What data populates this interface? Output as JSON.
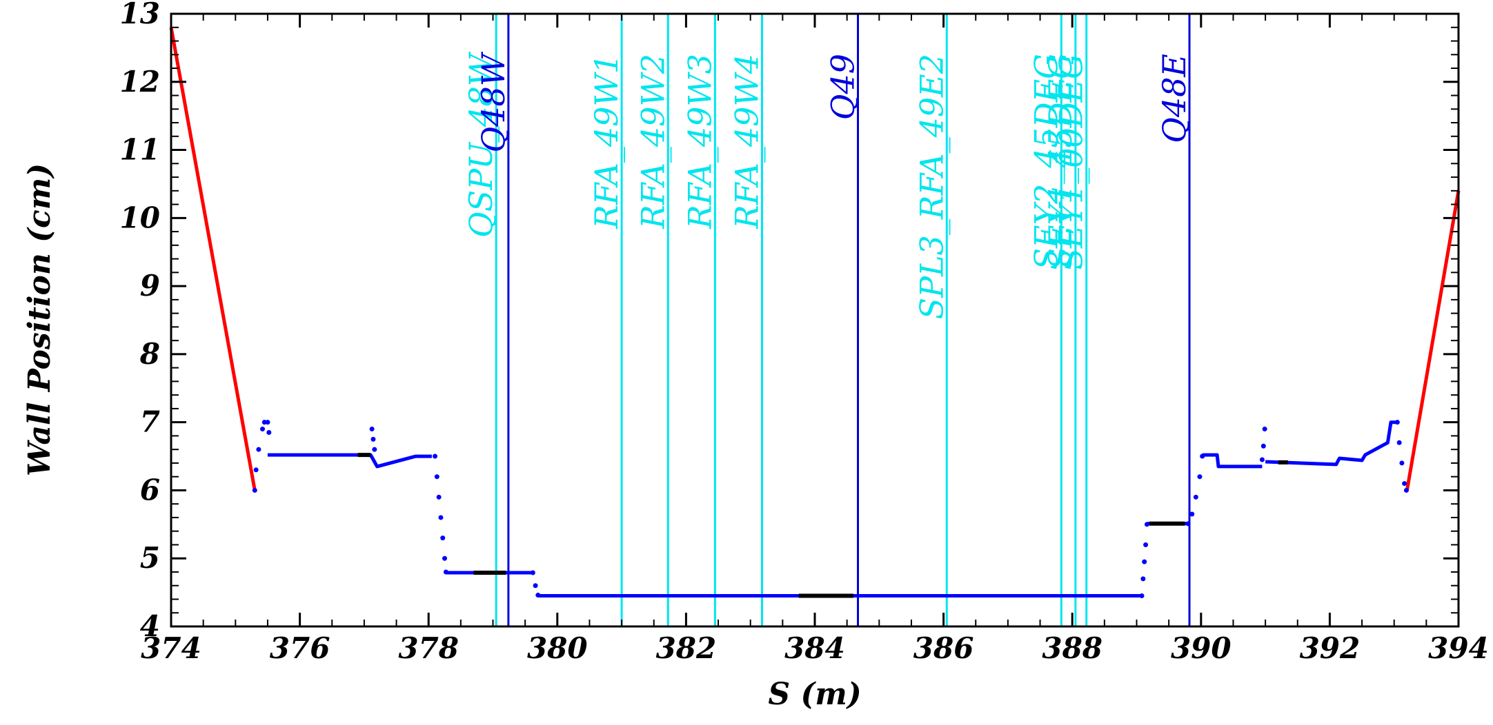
{
  "chart_data": {
    "type": "line",
    "xlabel": "S (m)",
    "ylabel": "Wall Position (cm)",
    "xlim": [
      374,
      394
    ],
    "ylim": [
      4,
      13
    ],
    "x_ticks": [
      374,
      376,
      378,
      380,
      382,
      384,
      386,
      388,
      390,
      392,
      394
    ],
    "y_ticks": [
      4,
      5,
      6,
      7,
      8,
      9,
      10,
      11,
      12,
      13
    ],
    "grid": false,
    "colors": {
      "red_series": "#ff0000",
      "blue_series": "#0000ff",
      "black_series": "#000000",
      "cyan_marker": "#00e5ee",
      "blue_marker": "#0000dd"
    },
    "series": [
      {
        "color": "red",
        "style": "line",
        "points": [
          [
            374.0,
            12.8
          ],
          [
            375.3,
            6.0
          ]
        ]
      },
      {
        "color": "red",
        "style": "line",
        "points": [
          [
            393.2,
            6.0
          ],
          [
            394.0,
            10.4
          ]
        ]
      },
      {
        "color": "blue",
        "style": "dots",
        "points": [
          [
            375.3,
            6.0
          ],
          [
            375.32,
            6.3
          ],
          [
            375.36,
            6.6
          ],
          [
            375.42,
            6.9
          ],
          [
            375.45,
            7.0
          ],
          [
            375.5,
            7.0
          ],
          [
            375.52,
            6.85
          ]
        ]
      },
      {
        "color": "blue",
        "style": "line",
        "points": [
          [
            375.5,
            6.52
          ],
          [
            377.1,
            6.52
          ],
          [
            377.2,
            6.35
          ],
          [
            377.8,
            6.5
          ],
          [
            378.05,
            6.5
          ]
        ]
      },
      {
        "color": "blue",
        "style": "dots",
        "points": [
          [
            377.12,
            6.9
          ],
          [
            377.14,
            6.75
          ],
          [
            377.16,
            6.6
          ]
        ]
      },
      {
        "color": "blue",
        "style": "dots",
        "points": [
          [
            378.1,
            6.5
          ],
          [
            378.13,
            6.2
          ],
          [
            378.16,
            5.9
          ],
          [
            378.19,
            5.6
          ],
          [
            378.22,
            5.3
          ],
          [
            378.25,
            5.0
          ],
          [
            378.27,
            4.8
          ]
        ]
      },
      {
        "color": "blue",
        "style": "line",
        "points": [
          [
            378.27,
            4.79
          ],
          [
            379.62,
            4.79
          ]
        ]
      },
      {
        "color": "blue",
        "style": "dots",
        "points": [
          [
            379.62,
            4.79
          ],
          [
            379.66,
            4.6
          ],
          [
            379.7,
            4.46
          ]
        ]
      },
      {
        "color": "blue",
        "style": "line",
        "points": [
          [
            379.7,
            4.45
          ],
          [
            389.08,
            4.45
          ]
        ]
      },
      {
        "color": "blue",
        "style": "dots",
        "points": [
          [
            389.08,
            4.45
          ],
          [
            389.1,
            4.7
          ],
          [
            389.12,
            4.95
          ],
          [
            389.14,
            5.2
          ],
          [
            389.16,
            5.5
          ]
        ]
      },
      {
        "color": "blue",
        "style": "line",
        "points": [
          [
            389.16,
            5.51
          ],
          [
            389.8,
            5.51
          ]
        ]
      },
      {
        "color": "blue",
        "style": "dots",
        "points": [
          [
            389.8,
            5.51
          ],
          [
            389.86,
            5.65
          ],
          [
            389.92,
            5.9
          ],
          [
            389.98,
            6.2
          ],
          [
            390.02,
            6.5
          ]
        ]
      },
      {
        "color": "blue",
        "style": "line",
        "points": [
          [
            390.02,
            6.52
          ],
          [
            390.25,
            6.52
          ],
          [
            390.27,
            6.35
          ],
          [
            390.95,
            6.35
          ]
        ]
      },
      {
        "color": "blue",
        "style": "dots",
        "points": [
          [
            390.95,
            6.45
          ],
          [
            390.97,
            6.65
          ],
          [
            390.99,
            6.9
          ]
        ]
      },
      {
        "color": "blue",
        "style": "line",
        "points": [
          [
            391.0,
            6.42
          ],
          [
            392.1,
            6.38
          ],
          [
            392.15,
            6.47
          ],
          [
            392.5,
            6.44
          ],
          [
            392.55,
            6.52
          ],
          [
            392.9,
            6.7
          ],
          [
            392.95,
            7.0
          ],
          [
            393.05,
            7.0
          ]
        ]
      },
      {
        "color": "blue",
        "style": "dots",
        "points": [
          [
            393.05,
            7.0
          ],
          [
            393.08,
            6.7
          ],
          [
            393.12,
            6.4
          ],
          [
            393.16,
            6.1
          ],
          [
            393.19,
            6.0
          ]
        ]
      },
      {
        "color": "black",
        "style": "line",
        "points": [
          [
            376.9,
            6.52
          ],
          [
            377.1,
            6.52
          ]
        ]
      },
      {
        "color": "black",
        "style": "line",
        "points": [
          [
            378.7,
            4.79
          ],
          [
            379.2,
            4.79
          ]
        ]
      },
      {
        "color": "black",
        "style": "line",
        "points": [
          [
            383.75,
            4.45
          ],
          [
            384.6,
            4.45
          ]
        ]
      },
      {
        "color": "black",
        "style": "line",
        "points": [
          [
            389.2,
            5.51
          ],
          [
            389.75,
            5.51
          ]
        ]
      },
      {
        "color": "black",
        "style": "line",
        "points": [
          [
            391.2,
            6.41
          ],
          [
            391.35,
            6.41
          ]
        ]
      }
    ],
    "markers": [
      {
        "label": "QSPU_48W",
        "s": 379.05,
        "color": "cyan"
      },
      {
        "label": "Q48W",
        "s": 379.24,
        "color": "blue"
      },
      {
        "label": "RFA_49W1",
        "s": 381.0,
        "color": "cyan"
      },
      {
        "label": "RFA_49W2",
        "s": 381.72,
        "color": "cyan"
      },
      {
        "label": "RFA_49W3",
        "s": 382.45,
        "color": "cyan"
      },
      {
        "label": "RFA_49W4",
        "s": 383.18,
        "color": "cyan"
      },
      {
        "label": "Q49",
        "s": 384.67,
        "color": "blue"
      },
      {
        "label": "SPL3_RFA_49E2",
        "s": 386.05,
        "color": "cyan"
      },
      {
        "label": "SEY2_45DEG",
        "s": 387.83,
        "color": "cyan"
      },
      {
        "label": "SEY1_45DEG",
        "s": 388.05,
        "color": "cyan"
      },
      {
        "label": "SEY1_00DEG",
        "s": 388.22,
        "color": "cyan"
      },
      {
        "label": "Q48E",
        "s": 389.82,
        "color": "blue"
      }
    ]
  }
}
